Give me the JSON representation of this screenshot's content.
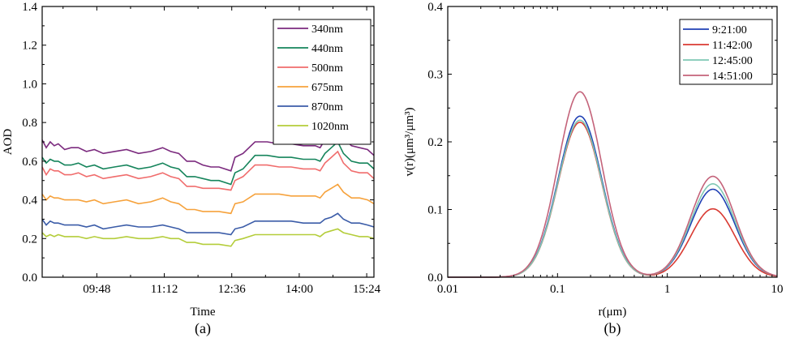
{
  "chart_data": [
    {
      "type": "line",
      "panel_label": "(a)",
      "xlabel": "Time",
      "ylabel": "AOD",
      "ylim": [
        0,
        1.4
      ],
      "y_ticks": [
        0.0,
        0.2,
        0.4,
        0.6,
        0.8,
        1.0,
        1.2,
        1.4
      ],
      "y_tick_labels": [
        "0.0",
        "0.2",
        "0.4",
        "0.6",
        "0.8",
        "1.0",
        "1.2",
        "1.4"
      ],
      "xlim": [
        520,
        933
      ],
      "x_ticks": [
        588,
        672,
        756,
        840,
        924
      ],
      "x_tick_labels": [
        "09:48",
        "11:12",
        "12:36",
        "14:00",
        "15:24"
      ],
      "x_unit": "minutes since midnight",
      "legend_position": "top-right",
      "x": [
        520,
        525,
        530,
        535,
        540,
        548,
        556,
        565,
        575,
        585,
        596,
        610,
        625,
        640,
        655,
        670,
        680,
        690,
        700,
        710,
        720,
        730,
        740,
        755,
        760,
        770,
        785,
        800,
        815,
        830,
        845,
        860,
        866,
        872,
        880,
        888,
        895,
        905,
        915,
        925,
        933
      ],
      "series": [
        {
          "name": "340nm",
          "color": "#7b2a7e",
          "values": [
            0.71,
            0.67,
            0.7,
            0.68,
            0.69,
            0.66,
            0.67,
            0.67,
            0.65,
            0.66,
            0.64,
            0.65,
            0.66,
            0.64,
            0.65,
            0.67,
            0.65,
            0.64,
            0.6,
            0.6,
            0.58,
            0.57,
            0.57,
            0.55,
            0.62,
            0.64,
            0.7,
            0.7,
            0.69,
            0.69,
            0.68,
            0.68,
            0.67,
            0.71,
            0.74,
            0.77,
            0.72,
            0.68,
            0.67,
            0.66,
            0.63
          ]
        },
        {
          "name": "440nm",
          "color": "#15845b",
          "values": [
            0.62,
            0.59,
            0.61,
            0.6,
            0.6,
            0.58,
            0.58,
            0.59,
            0.57,
            0.58,
            0.56,
            0.57,
            0.58,
            0.56,
            0.57,
            0.59,
            0.57,
            0.56,
            0.52,
            0.52,
            0.51,
            0.5,
            0.5,
            0.48,
            0.54,
            0.56,
            0.63,
            0.63,
            0.62,
            0.62,
            0.61,
            0.61,
            0.6,
            0.64,
            0.67,
            0.7,
            0.64,
            0.6,
            0.59,
            0.59,
            0.56
          ]
        },
        {
          "name": "500nm",
          "color": "#f06c6c",
          "values": [
            0.57,
            0.53,
            0.56,
            0.55,
            0.55,
            0.53,
            0.53,
            0.54,
            0.52,
            0.53,
            0.51,
            0.52,
            0.53,
            0.51,
            0.52,
            0.54,
            0.52,
            0.51,
            0.47,
            0.47,
            0.46,
            0.46,
            0.46,
            0.45,
            0.5,
            0.52,
            0.58,
            0.58,
            0.57,
            0.57,
            0.56,
            0.56,
            0.55,
            0.59,
            0.62,
            0.65,
            0.59,
            0.55,
            0.54,
            0.54,
            0.51
          ]
        },
        {
          "name": "675nm",
          "color": "#f6a23c",
          "values": [
            0.43,
            0.4,
            0.42,
            0.41,
            0.41,
            0.4,
            0.4,
            0.4,
            0.39,
            0.4,
            0.38,
            0.39,
            0.4,
            0.38,
            0.39,
            0.41,
            0.39,
            0.38,
            0.35,
            0.35,
            0.34,
            0.34,
            0.34,
            0.33,
            0.38,
            0.39,
            0.43,
            0.43,
            0.43,
            0.42,
            0.42,
            0.42,
            0.41,
            0.44,
            0.46,
            0.48,
            0.44,
            0.41,
            0.41,
            0.4,
            0.38
          ]
        },
        {
          "name": "870nm",
          "color": "#3b5ca8",
          "values": [
            0.3,
            0.27,
            0.29,
            0.28,
            0.28,
            0.27,
            0.27,
            0.27,
            0.26,
            0.27,
            0.25,
            0.26,
            0.27,
            0.26,
            0.26,
            0.27,
            0.26,
            0.25,
            0.23,
            0.23,
            0.23,
            0.23,
            0.23,
            0.22,
            0.25,
            0.26,
            0.29,
            0.29,
            0.29,
            0.29,
            0.28,
            0.28,
            0.28,
            0.3,
            0.31,
            0.33,
            0.3,
            0.28,
            0.28,
            0.27,
            0.26
          ]
        },
        {
          "name": "1020nm",
          "color": "#b4cd3a",
          "values": [
            0.23,
            0.21,
            0.22,
            0.21,
            0.22,
            0.21,
            0.21,
            0.21,
            0.2,
            0.21,
            0.2,
            0.2,
            0.21,
            0.2,
            0.2,
            0.21,
            0.2,
            0.2,
            0.18,
            0.18,
            0.17,
            0.17,
            0.17,
            0.16,
            0.19,
            0.2,
            0.22,
            0.22,
            0.22,
            0.22,
            0.22,
            0.22,
            0.21,
            0.23,
            0.24,
            0.25,
            0.23,
            0.22,
            0.21,
            0.21,
            0.2
          ]
        }
      ]
    },
    {
      "type": "line",
      "panel_label": "(b)",
      "xlabel": "r(μm)",
      "ylabel": "v(r)(μm³/μm³)",
      "x_scale": "log",
      "xlim": [
        0.01,
        10
      ],
      "x_ticks": [
        0.01,
        0.1,
        1,
        10
      ],
      "x_tick_labels": [
        "0.01",
        "0.1",
        "1",
        "10"
      ],
      "ylim": [
        0,
        0.4
      ],
      "y_ticks": [
        0.0,
        0.1,
        0.2,
        0.3,
        0.4
      ],
      "y_tick_labels": [
        "0.0",
        "0.1",
        "0.2",
        "0.3",
        "0.4"
      ],
      "legend_position": "top-right",
      "series": [
        {
          "name": "9:21:00",
          "color": "#1f3fb4",
          "fine_peak_r": 0.16,
          "fine_peak_v": 0.238,
          "coarse_peak_r": 2.6,
          "coarse_peak_v": 0.13
        },
        {
          "name": "11:42:00",
          "color": "#d93a32",
          "fine_peak_r": 0.16,
          "fine_peak_v": 0.229,
          "coarse_peak_r": 2.6,
          "coarse_peak_v": 0.101
        },
        {
          "name": "12:45:00",
          "color": "#7fc8b4",
          "fine_peak_r": 0.16,
          "fine_peak_v": 0.232,
          "coarse_peak_r": 2.6,
          "coarse_peak_v": 0.138
        },
        {
          "name": "14:51:00",
          "color": "#c4637a",
          "fine_peak_r": 0.16,
          "fine_peak_v": 0.274,
          "coarse_peak_r": 2.6,
          "coarse_peak_v": 0.149
        }
      ]
    }
  ]
}
